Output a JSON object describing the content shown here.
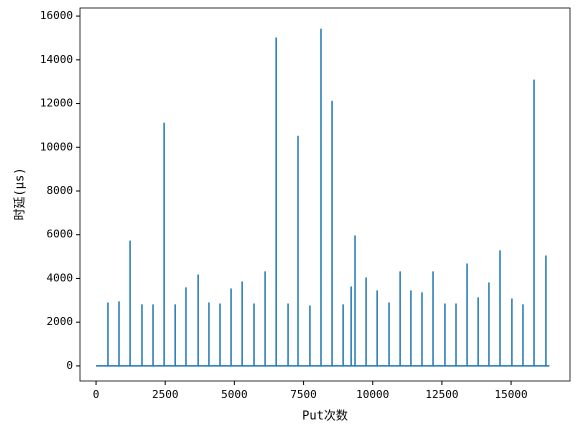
{
  "chart_data": {
    "type": "line",
    "xlabel": "Put次数",
    "ylabel": "时延(μs)",
    "xlim": [
      -580,
      17130
    ],
    "ylim": [
      -690,
      16370
    ],
    "xticks": [
      0,
      2500,
      5000,
      7500,
      10000,
      12500,
      15000
    ],
    "yticks": [
      0,
      2000,
      4000,
      6000,
      8000,
      10000,
      12000,
      14000,
      16000
    ],
    "series": [
      {
        "color": "#1f77b4",
        "x": [
          0,
          430,
          430,
          430,
          830,
          830,
          830,
          1230,
          1230,
          1230,
          1660,
          1660,
          1660,
          2060,
          2060,
          2060,
          2460,
          2460,
          2460,
          2860,
          2860,
          2860,
          3250,
          3250,
          3250,
          3690,
          3690,
          3690,
          4080,
          4080,
          4080,
          4480,
          4480,
          4480,
          4880,
          4880,
          4880,
          5280,
          5280,
          5280,
          5710,
          5710,
          5710,
          6110,
          6110,
          6110,
          6510,
          6510,
          6510,
          6940,
          6940,
          6940,
          7300,
          7300,
          7300,
          7730,
          7730,
          7730,
          8130,
          8130,
          8130,
          8530,
          8530,
          8530,
          8930,
          8930,
          8930,
          9220,
          9220,
          9220,
          9360,
          9360,
          9360,
          9760,
          9760,
          9760,
          10160,
          10160,
          10160,
          10590,
          10590,
          10590,
          10990,
          10990,
          10990,
          11380,
          11380,
          11380,
          11780,
          11780,
          11780,
          12180,
          12180,
          12180,
          12610,
          12610,
          12610,
          13010,
          13010,
          13010,
          13410,
          13410,
          13410,
          13810,
          13810,
          13810,
          14200,
          14200,
          14200,
          14600,
          14600,
          14600,
          15030,
          15030,
          15030,
          15430,
          15430,
          15430,
          15830,
          15830,
          15830,
          16260,
          16260,
          16260,
          16384
        ],
        "values": [
          0,
          0,
          2880,
          0,
          0,
          2930,
          0,
          0,
          5710,
          0,
          0,
          2790,
          0,
          0,
          2790,
          0,
          0,
          11100,
          0,
          0,
          2790,
          0,
          0,
          3570,
          0,
          0,
          4160,
          0,
          0,
          2880,
          0,
          0,
          2830,
          0,
          0,
          3520,
          0,
          0,
          3840,
          0,
          0,
          2830,
          0,
          0,
          4300,
          0,
          0,
          15000,
          0,
          0,
          2830,
          0,
          0,
          10500,
          0,
          0,
          2740,
          0,
          0,
          15400,
          0,
          0,
          12100,
          0,
          0,
          2790,
          0,
          0,
          3610,
          0,
          0,
          5940,
          0,
          0,
          4020,
          0,
          0,
          3430,
          0,
          0,
          2880,
          0,
          0,
          4300,
          0,
          0,
          3430,
          0,
          0,
          3340,
          0,
          0,
          4300,
          0,
          0,
          2830,
          0,
          0,
          2830,
          0,
          0,
          4660,
          0,
          0,
          3110,
          0,
          0,
          3790,
          0,
          0,
          5260,
          0,
          0,
          3060,
          0,
          0,
          2790,
          0,
          0,
          13070,
          0,
          0,
          5030,
          0,
          0
        ]
      }
    ]
  }
}
